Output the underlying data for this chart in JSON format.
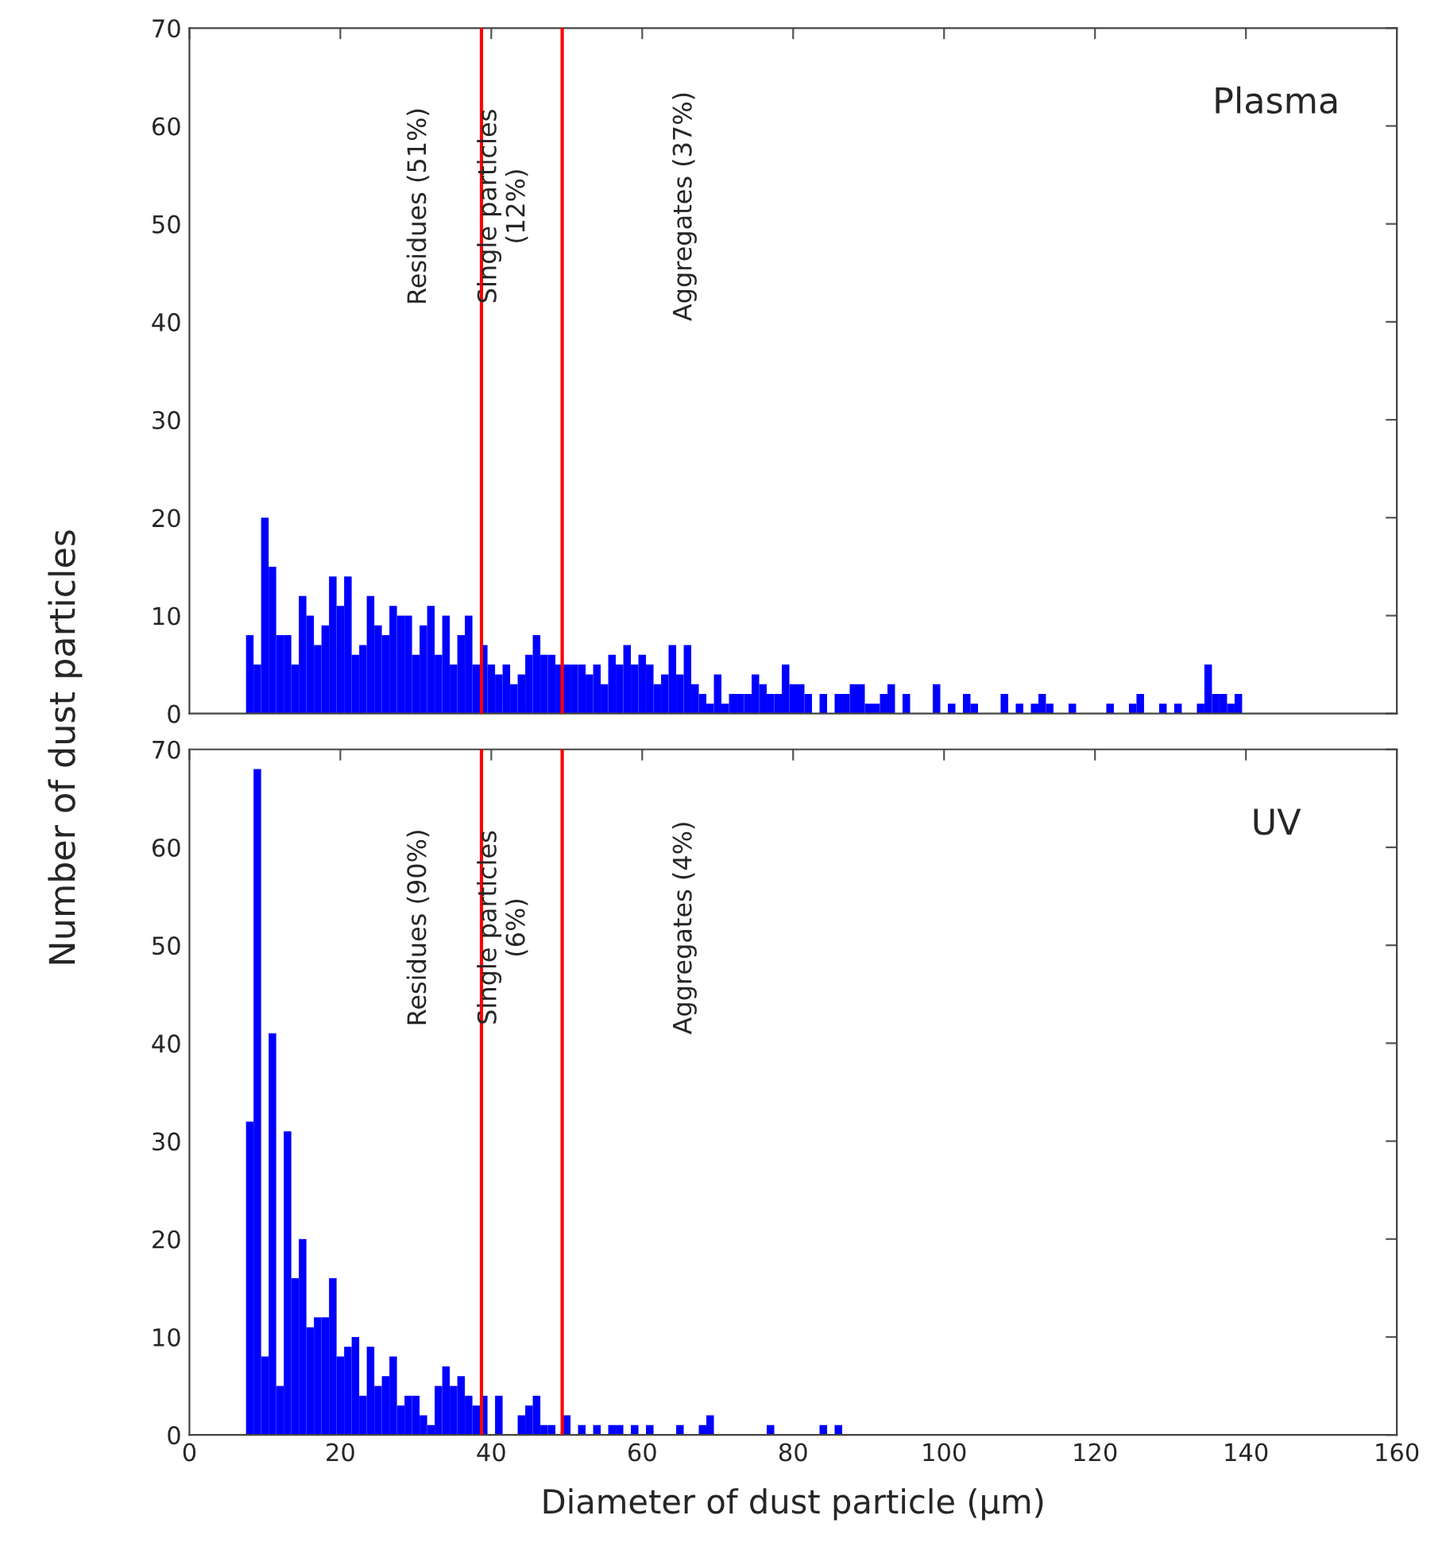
{
  "chart_data": [
    {
      "type": "histogram",
      "ylabel": "Number of dust particles",
      "color": "#0000ff",
      "bins": [
        7.5,
        8.5,
        9.5,
        10.5,
        11.5,
        12.5,
        13.5,
        14.5,
        15.5,
        16.5,
        17.5,
        18.5,
        19.5,
        20.5,
        21.5,
        22.5,
        23.5,
        24.5,
        25.5,
        26.5,
        27.5,
        28.5,
        29.5,
        30.5,
        31.5,
        32.5,
        33.5,
        34.5,
        35.5,
        36.5,
        37.5,
        38.5,
        39.5,
        40.5,
        41.5,
        42.5,
        43.5,
        44.5,
        45.5,
        46.5,
        47.5,
        48.5,
        49.5,
        50.5,
        51.5,
        52.5,
        53.5,
        54.5,
        55.5,
        56.5,
        57.5,
        58.5,
        59.5,
        60.5,
        61.5,
        62.5,
        63.5,
        64.5,
        65.5,
        66.5,
        67.5,
        68.5,
        69.5,
        70.5,
        71.5,
        72.5,
        73.5,
        74.5,
        75.5,
        76.5,
        77.5,
        78.5,
        79.5,
        80.5,
        81.5,
        82.5,
        83.5,
        84.5,
        85.5,
        86.5,
        87.5,
        88.5,
        89.5,
        90.5,
        91.5,
        92.5,
        93.5,
        94.5,
        95.5,
        96.5,
        97.5,
        98.5,
        99.5,
        100.5,
        101.5,
        102.5,
        103.5,
        104.5,
        105.5,
        106.5,
        107.5,
        108.5,
        109.5,
        110.5,
        111.5,
        112.5,
        113.5,
        114.5,
        115.5,
        116.5,
        117.5,
        118.5,
        119.5,
        120.5,
        121.5,
        122.5,
        123.5,
        124.5,
        125.5,
        126.5,
        127.5,
        128.5,
        129.5,
        130.5,
        131.5,
        132.5,
        133.5,
        134.5,
        135.5,
        136.5,
        137.5,
        138.5,
        139.5
      ],
      "values": [
        8,
        5,
        20,
        15,
        8,
        8,
        5,
        12,
        10,
        7,
        9,
        14,
        11,
        14,
        6,
        7,
        12,
        9,
        8,
        11,
        10,
        10,
        6,
        9,
        11,
        6,
        10,
        5,
        8,
        10,
        5,
        7,
        5,
        4,
        5,
        3,
        4,
        6,
        8,
        6,
        6,
        5,
        5,
        5,
        5,
        4,
        5,
        3,
        6,
        5,
        7,
        5,
        6,
        5,
        3,
        4,
        7,
        4,
        7,
        3,
        2,
        1,
        4,
        1,
        2,
        2,
        2,
        4,
        3,
        2,
        2,
        5,
        3,
        3,
        2,
        0,
        2,
        0,
        2,
        2,
        3,
        3,
        1,
        1,
        2,
        3,
        0,
        2,
        0,
        0,
        0,
        3,
        0,
        1,
        0,
        2,
        1,
        0,
        0,
        0,
        2,
        0,
        1,
        0,
        1,
        2,
        1,
        0,
        0,
        1,
        0,
        0,
        0,
        0,
        1,
        0,
        0,
        1,
        2,
        0,
        0,
        1,
        0,
        1,
        0,
        0,
        1,
        5,
        2,
        2,
        1,
        2
      ],
      "xlim": [
        0,
        160
      ],
      "xticks": [
        0,
        20,
        40,
        60,
        80,
        100,
        120,
        140,
        160
      ],
      "ylim": [
        0,
        70
      ],
      "yticks": [
        0,
        10,
        20,
        30,
        40,
        50,
        60,
        70
      ],
      "tick_labels": "y",
      "ref_lines": [
        {
          "axis": "x",
          "value": 38.7,
          "color": "#ff0000"
        },
        {
          "axis": "x",
          "value": 49.4,
          "color": "#ff0000"
        }
      ],
      "annotations": [
        "Plasma",
        "Residues (51%)",
        "Single particles\n(12%)",
        "Aggregates (37%)"
      ]
    },
    {
      "type": "histogram",
      "xlabel": "Diameter of dust particle (μm)",
      "color": "#0000ff",
      "bins": [
        7.5,
        8.5,
        9.5,
        10.5,
        11.5,
        12.5,
        13.5,
        14.5,
        15.5,
        16.5,
        17.5,
        18.5,
        19.5,
        20.5,
        21.5,
        22.5,
        23.5,
        24.5,
        25.5,
        26.5,
        27.5,
        28.5,
        29.5,
        30.5,
        31.5,
        32.5,
        33.5,
        34.5,
        35.5,
        36.5,
        37.5,
        38.5,
        39.5,
        40.5,
        41.5,
        42.5,
        43.5,
        44.5,
        45.5,
        46.5,
        47.5,
        48.5,
        49.5,
        50.5,
        51.5,
        52.5,
        53.5,
        54.5,
        55.5,
        56.5,
        57.5,
        58.5,
        59.5,
        60.5,
        61.5,
        62.5,
        63.5,
        64.5,
        65.5,
        66.5,
        67.5,
        68.5,
        69.5,
        70.5,
        71.5,
        72.5,
        73.5,
        74.5,
        75.5,
        76.5,
        77.5,
        78.5,
        79.5,
        80.5,
        81.5,
        82.5,
        83.5,
        84.5,
        85.5,
        86.5
      ],
      "values": [
        32,
        68,
        8,
        41,
        5,
        31,
        16,
        20,
        11,
        12,
        12,
        16,
        8,
        9,
        10,
        4,
        9,
        5,
        6,
        8,
        3,
        4,
        4,
        2,
        1,
        5,
        7,
        5,
        6,
        4,
        3,
        4,
        0,
        4,
        0,
        0,
        2,
        3,
        4,
        1,
        1,
        0,
        2,
        0,
        1,
        0,
        1,
        0,
        1,
        1,
        0,
        1,
        0,
        1,
        0,
        0,
        0,
        1,
        0,
        0,
        1,
        2,
        0,
        0,
        0,
        0,
        0,
        0,
        0,
        1,
        0,
        0,
        0,
        0,
        0,
        0,
        1,
        0,
        1
      ],
      "xlim": [
        0,
        160
      ],
      "xticks": [
        0,
        20,
        40,
        60,
        80,
        100,
        120,
        140,
        160
      ],
      "ylim": [
        0,
        70
      ],
      "yticks": [
        0,
        10,
        20,
        30,
        40,
        50,
        60,
        70
      ],
      "ref_lines": [
        {
          "axis": "x",
          "value": 38.7,
          "color": "#ff0000"
        },
        {
          "axis": "x",
          "value": 49.4,
          "color": "#ff0000"
        }
      ],
      "annotations": [
        "UV",
        "Residues (90%)",
        "Single particles\n(6%)",
        "Aggregates (4%)"
      ]
    }
  ]
}
